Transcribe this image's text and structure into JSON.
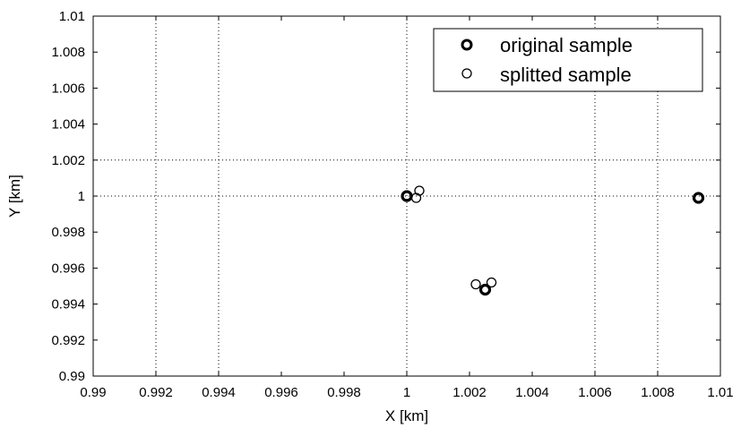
{
  "chart_data": {
    "type": "scatter",
    "title": "",
    "xlabel": "X [km]",
    "ylabel": "Y [km]",
    "xlim": [
      0.99,
      1.01
    ],
    "ylim": [
      0.99,
      1.01
    ],
    "xticks": [
      "0.99",
      "0.992",
      "0.994",
      "0.996",
      "0.998",
      "1",
      "1.002",
      "1.004",
      "1.006",
      "1.008",
      "1.01"
    ],
    "yticks": [
      "0.99",
      "0.992",
      "0.994",
      "0.996",
      "0.998",
      "1",
      "1.002",
      "1.004",
      "1.006",
      "1.008",
      "1.01"
    ],
    "grid": "dotted lines at x=0.992, 0.994, 1, 1.006, 1.008 and y=1, 1.002",
    "grid_x": [
      0.992,
      0.994,
      1.0,
      1.006,
      1.008
    ],
    "grid_y": [
      1.0,
      1.002
    ],
    "legend_position": "top-right",
    "series": [
      {
        "name": "original sample",
        "marker": "bold-circle",
        "color": "#000000",
        "points": [
          {
            "x": 1.0,
            "y": 1.0
          },
          {
            "x": 1.0025,
            "y": 0.9948
          },
          {
            "x": 1.0093,
            "y": 0.9999
          }
        ]
      },
      {
        "name": "splitted sample",
        "marker": "circle",
        "color": "#000000",
        "points": [
          {
            "x": 1.0,
            "y": 1.0
          },
          {
            "x": 1.0003,
            "y": 0.9999
          },
          {
            "x": 1.0004,
            "y": 1.0003
          },
          {
            "x": 1.0022,
            "y": 0.9951
          },
          {
            "x": 1.0027,
            "y": 0.9952
          },
          {
            "x": 1.0093,
            "y": 0.9999
          }
        ]
      }
    ]
  }
}
